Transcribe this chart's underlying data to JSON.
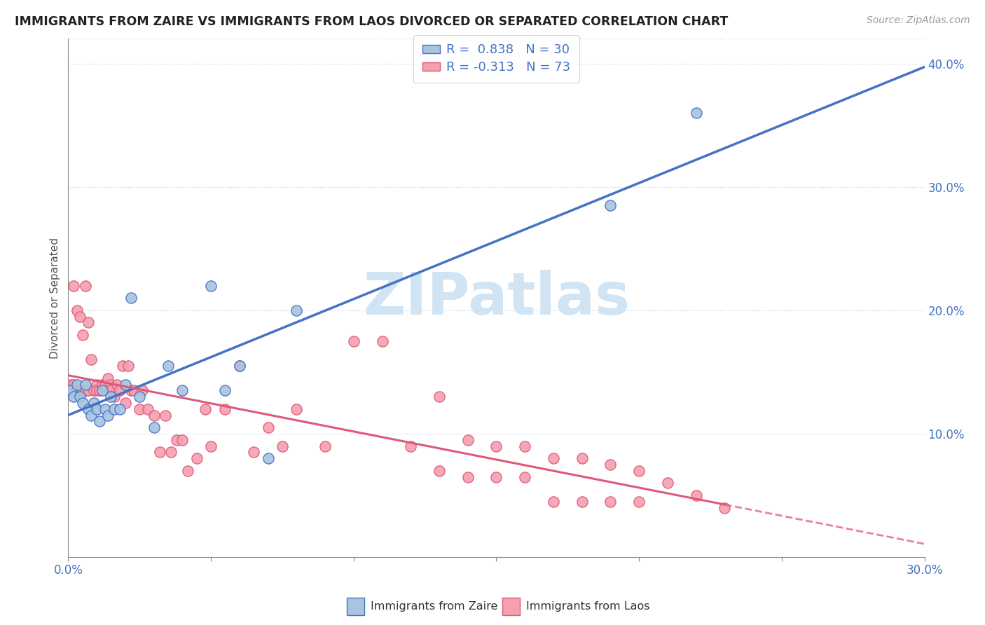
{
  "title": "IMMIGRANTS FROM ZAIRE VS IMMIGRANTS FROM LAOS DIVORCED OR SEPARATED CORRELATION CHART",
  "source": "Source: ZipAtlas.com",
  "ylabel_label": "Divorced or Separated",
  "legend_zaire": "Immigrants from Zaire",
  "legend_laos": "Immigrants from Laos",
  "R_zaire": 0.838,
  "N_zaire": 30,
  "R_laos": -0.313,
  "N_laos": 73,
  "xlim": [
    0.0,
    0.3
  ],
  "ylim": [
    0.0,
    0.42
  ],
  "color_zaire_fill": "#a8c4e0",
  "color_zaire_edge": "#4472c4",
  "color_laos_fill": "#f4a0b0",
  "color_laos_edge": "#e05878",
  "color_zaire_line": "#4472c4",
  "color_laos_line": "#e05878",
  "color_text_blue": "#4472c4",
  "color_grid": "#c8d0dc",
  "watermark_color": "#d0e4f4",
  "zaire_points_x": [
    0.001,
    0.002,
    0.003,
    0.004,
    0.005,
    0.006,
    0.007,
    0.008,
    0.009,
    0.01,
    0.011,
    0.012,
    0.013,
    0.014,
    0.015,
    0.016,
    0.018,
    0.02,
    0.022,
    0.025,
    0.03,
    0.035,
    0.04,
    0.05,
    0.055,
    0.06,
    0.07,
    0.08,
    0.19,
    0.22
  ],
  "zaire_points_y": [
    0.135,
    0.13,
    0.14,
    0.13,
    0.125,
    0.14,
    0.12,
    0.115,
    0.125,
    0.12,
    0.11,
    0.135,
    0.12,
    0.115,
    0.13,
    0.12,
    0.12,
    0.14,
    0.21,
    0.13,
    0.105,
    0.155,
    0.135,
    0.22,
    0.135,
    0.155,
    0.08,
    0.2,
    0.285,
    0.36
  ],
  "laos_points_x": [
    0.001,
    0.002,
    0.002,
    0.003,
    0.003,
    0.004,
    0.004,
    0.005,
    0.005,
    0.006,
    0.006,
    0.007,
    0.007,
    0.008,
    0.009,
    0.01,
    0.01,
    0.011,
    0.012,
    0.013,
    0.014,
    0.015,
    0.015,
    0.016,
    0.017,
    0.018,
    0.019,
    0.02,
    0.021,
    0.022,
    0.023,
    0.025,
    0.026,
    0.028,
    0.03,
    0.032,
    0.034,
    0.036,
    0.038,
    0.04,
    0.042,
    0.045,
    0.048,
    0.05,
    0.055,
    0.06,
    0.065,
    0.07,
    0.075,
    0.08,
    0.09,
    0.1,
    0.11,
    0.12,
    0.13,
    0.14,
    0.15,
    0.16,
    0.17,
    0.18,
    0.19,
    0.2,
    0.13,
    0.14,
    0.15,
    0.16,
    0.17,
    0.18,
    0.19,
    0.2,
    0.21,
    0.22,
    0.23
  ],
  "laos_points_y": [
    0.14,
    0.14,
    0.22,
    0.2,
    0.135,
    0.195,
    0.135,
    0.18,
    0.135,
    0.22,
    0.135,
    0.19,
    0.135,
    0.16,
    0.135,
    0.14,
    0.135,
    0.135,
    0.14,
    0.14,
    0.145,
    0.14,
    0.135,
    0.13,
    0.14,
    0.135,
    0.155,
    0.125,
    0.155,
    0.135,
    0.135,
    0.12,
    0.135,
    0.12,
    0.115,
    0.085,
    0.115,
    0.085,
    0.095,
    0.095,
    0.07,
    0.08,
    0.12,
    0.09,
    0.12,
    0.155,
    0.085,
    0.105,
    0.09,
    0.12,
    0.09,
    0.175,
    0.175,
    0.09,
    0.07,
    0.065,
    0.065,
    0.065,
    0.045,
    0.045,
    0.045,
    0.045,
    0.13,
    0.095,
    0.09,
    0.09,
    0.08,
    0.08,
    0.075,
    0.07,
    0.06,
    0.05,
    0.04
  ]
}
